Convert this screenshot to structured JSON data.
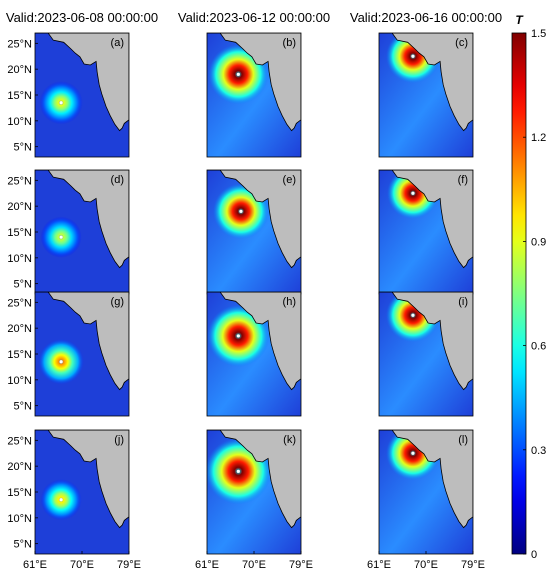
{
  "chart_data": {
    "type": "heatmap",
    "column_titles": [
      "Valid:2023-06-08 00:00:00",
      "Valid:2023-06-12 00:00:00",
      "Valid:2023-06-16 00:00:00"
    ],
    "panels": [
      {
        "label": "(a)",
        "center": [
          66.0,
          13.5
        ],
        "intensity": 0.9,
        "radius": 0.6
      },
      {
        "label": "(b)",
        "center": [
          67.0,
          19.0
        ],
        "intensity": 1.5,
        "radius": 1.0
      },
      {
        "label": "(c)",
        "center": [
          67.5,
          22.5
        ],
        "intensity": 1.5,
        "radius": 0.85
      },
      {
        "label": "(d)",
        "center": [
          66.0,
          14.0
        ],
        "intensity": 0.85,
        "radius": 0.55
      },
      {
        "label": "(e)",
        "center": [
          67.5,
          19.0
        ],
        "intensity": 1.5,
        "radius": 0.9
      },
      {
        "label": "(f)",
        "center": [
          67.5,
          22.5
        ],
        "intensity": 1.5,
        "radius": 0.8
      },
      {
        "label": "(g)",
        "center": [
          66.0,
          13.5
        ],
        "intensity": 1.1,
        "radius": 0.65
      },
      {
        "label": "(h)",
        "center": [
          67.0,
          18.5
        ],
        "intensity": 1.5,
        "radius": 1.05
      },
      {
        "label": "(i)",
        "center": [
          67.5,
          22.5
        ],
        "intensity": 1.5,
        "radius": 0.85
      },
      {
        "label": "(j)",
        "center": [
          66.0,
          13.5
        ],
        "intensity": 0.95,
        "radius": 0.55
      },
      {
        "label": "(k)",
        "center": [
          67.0,
          19.0
        ],
        "intensity": 1.5,
        "radius": 1.15
      },
      {
        "label": "(l)",
        "center": [
          67.5,
          22.5
        ],
        "intensity": 1.5,
        "radius": 0.85
      }
    ],
    "x_ticks": [
      "61°E",
      "70°E",
      "79°E"
    ],
    "x_tick_values": [
      61,
      70,
      79
    ],
    "y_ticks": [
      "25°N",
      "20°N",
      "15°N",
      "10°N",
      "5°N"
    ],
    "y_tick_values": [
      25,
      20,
      15,
      10,
      5
    ],
    "xlim": [
      61,
      79
    ],
    "ylim": [
      3,
      27
    ],
    "colorbar": {
      "title": "T",
      "ticks": [
        "1.5",
        "1.2",
        "0.9",
        "0.6",
        "0.3",
        "0"
      ],
      "tick_values": [
        1.5,
        1.2,
        0.9,
        0.6,
        0.3,
        0
      ],
      "range": [
        0,
        1.5
      ],
      "colormap": "jet"
    },
    "colors": {
      "land": "#bdbdbd",
      "ocean_low": "#1e3fd8",
      "ocean_mid": "#2a8cff"
    }
  }
}
